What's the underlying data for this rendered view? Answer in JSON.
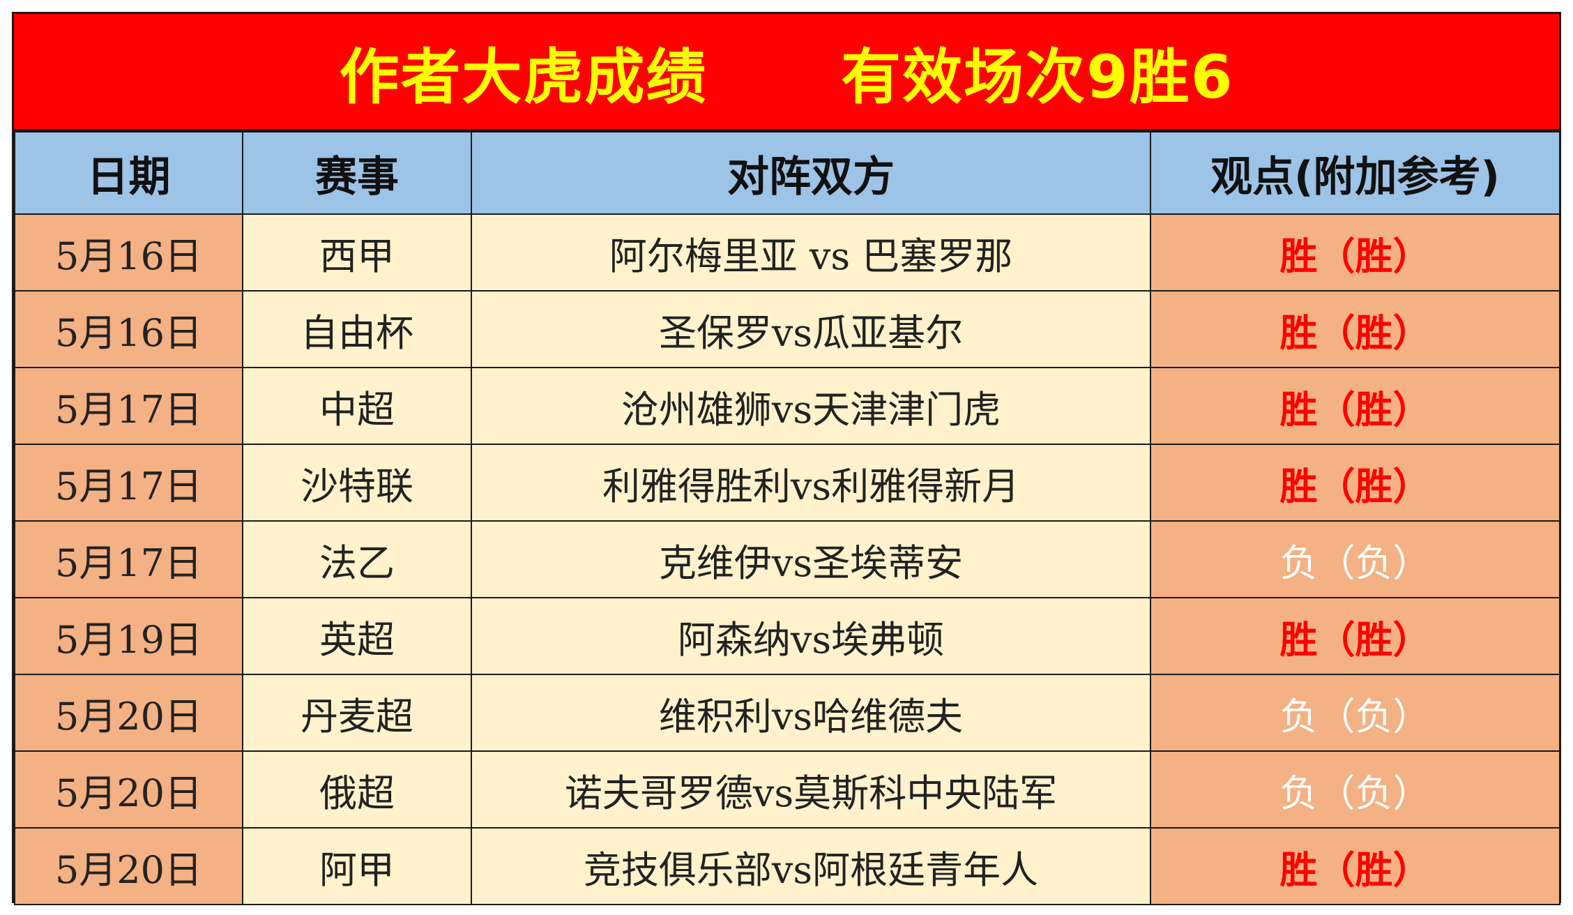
{
  "title": "作者大虎成绩      有效场次9胜6",
  "headers": {
    "date": "日期",
    "competition": "赛事",
    "match": "对阵双方",
    "view": "观点(附加参考)"
  },
  "colors": {
    "title_bg": "#ff0000",
    "title_text": "#ffff00",
    "header_bg": "#9dc3e6",
    "date_view_bg": "#f4b183",
    "comp_match_bg": "#fff2cc",
    "win_text": "#ff0000",
    "lose_text": "#ffffff"
  },
  "rows": [
    {
      "date": "5月16日",
      "competition": "西甲",
      "match": "阿尔梅里亚 vs 巴塞罗那",
      "view": "胜（胜）",
      "result": "win"
    },
    {
      "date": "5月16日",
      "competition": "自由杯",
      "match": "圣保罗vs瓜亚基尔",
      "view": "胜（胜）",
      "result": "win"
    },
    {
      "date": "5月17日",
      "competition": "中超",
      "match": "沧州雄狮vs天津津门虎",
      "view": "胜（胜）",
      "result": "win"
    },
    {
      "date": "5月17日",
      "competition": "沙特联",
      "match": "利雅得胜利vs利雅得新月",
      "view": "胜（胜）",
      "result": "win"
    },
    {
      "date": "5月17日",
      "competition": "法乙",
      "match": "克维伊vs圣埃蒂安",
      "view": "负（负）",
      "result": "lose"
    },
    {
      "date": "5月19日",
      "competition": "英超",
      "match": "阿森纳vs埃弗顿",
      "view": "胜（胜）",
      "result": "win"
    },
    {
      "date": "5月20日",
      "competition": "丹麦超",
      "match": "维积利vs哈维德夫",
      "view": "负（负）",
      "result": "lose"
    },
    {
      "date": "5月20日",
      "competition": "俄超",
      "match": "诺夫哥罗德vs莫斯科中央陆军",
      "view": "负（负）",
      "result": "lose"
    },
    {
      "date": "5月20日",
      "competition": "阿甲",
      "match": "竞技俱乐部vs阿根廷青年人",
      "view": "胜（胜）",
      "result": "win"
    }
  ]
}
